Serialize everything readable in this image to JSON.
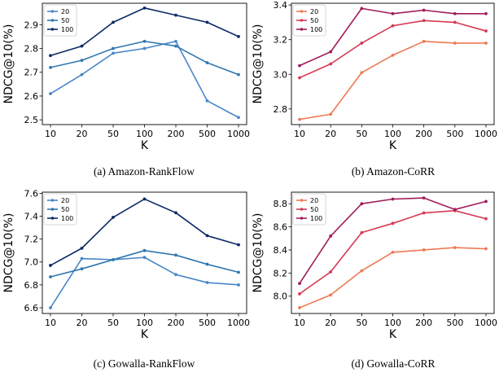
{
  "chart_data": [
    {
      "type": "line",
      "caption": "(a)  Amazon-RankFlow",
      "xlabel": "K",
      "ylabel": "NDCG@10(%)",
      "categories": [
        "10",
        "20",
        "50",
        "100",
        "200",
        "500",
        "1000"
      ],
      "ylim": [
        2.48,
        2.99
      ],
      "yticks": [
        "2.5",
        "2.6",
        "2.7",
        "2.8",
        "2.9"
      ],
      "legend_position": "top-left",
      "series": [
        {
          "name": "20",
          "color": "#4a86c8",
          "values": [
            2.61,
            2.69,
            2.78,
            2.8,
            2.83,
            2.58,
            2.51
          ]
        },
        {
          "name": "50",
          "color": "#2f77b0",
          "values": [
            2.72,
            2.75,
            2.8,
            2.83,
            2.81,
            2.74,
            2.69
          ]
        },
        {
          "name": "100",
          "color": "#0c2a66",
          "values": [
            2.77,
            2.81,
            2.91,
            2.97,
            2.94,
            2.91,
            2.85
          ]
        }
      ]
    },
    {
      "type": "line",
      "caption": "(b)  Amazon-CoRR",
      "xlabel": "K",
      "ylabel": "NDCG@10(%)",
      "categories": [
        "10",
        "20",
        "50",
        "100",
        "200",
        "500",
        "1000"
      ],
      "ylim": [
        2.71,
        3.41
      ],
      "yticks": [
        "2.8",
        "3.0",
        "3.2",
        "3.4"
      ],
      "legend_position": "top-left",
      "series": [
        {
          "name": "20",
          "color": "#ee7a55",
          "values": [
            2.74,
            2.77,
            3.01,
            3.11,
            3.19,
            3.18,
            3.18
          ]
        },
        {
          "name": "50",
          "color": "#d63a55",
          "values": [
            2.98,
            3.06,
            3.18,
            3.28,
            3.31,
            3.3,
            3.25
          ]
        },
        {
          "name": "100",
          "color": "#a01c5a",
          "values": [
            3.05,
            3.13,
            3.38,
            3.35,
            3.37,
            3.35,
            3.35
          ]
        }
      ]
    },
    {
      "type": "line",
      "caption": "(c)  Gowalla-RankFlow",
      "xlabel": "K",
      "ylabel": "NDCG@10(%)",
      "categories": [
        "10",
        "20",
        "50",
        "100",
        "200",
        "500",
        "1000"
      ],
      "ylim": [
        6.55,
        7.61
      ],
      "yticks": [
        "6.6",
        "6.8",
        "7.0",
        "7.2",
        "7.4",
        "7.6"
      ],
      "legend_position": "top-left",
      "series": [
        {
          "name": "20",
          "color": "#4a86c8",
          "values": [
            6.6,
            7.03,
            7.02,
            7.04,
            6.89,
            6.82,
            6.8
          ]
        },
        {
          "name": "50",
          "color": "#2f77b0",
          "values": [
            6.87,
            6.94,
            7.02,
            7.1,
            7.06,
            6.98,
            6.91
          ]
        },
        {
          "name": "100",
          "color": "#0c2a66",
          "values": [
            6.97,
            7.12,
            7.39,
            7.55,
            7.43,
            7.23,
            7.15
          ]
        }
      ]
    },
    {
      "type": "line",
      "caption": "(d)  Gowalla-CoRR",
      "xlabel": "K",
      "ylabel": "NDCG@10(%)",
      "categories": [
        "10",
        "20",
        "50",
        "100",
        "200",
        "500",
        "1000"
      ],
      "ylim": [
        7.85,
        8.9
      ],
      "yticks": [
        "8.0",
        "8.2",
        "8.4",
        "8.6",
        "8.8"
      ],
      "legend_position": "top-left",
      "series": [
        {
          "name": "20",
          "color": "#ee7a55",
          "values": [
            7.9,
            8.01,
            8.22,
            8.38,
            8.4,
            8.42,
            8.41
          ]
        },
        {
          "name": "50",
          "color": "#d63a55",
          "values": [
            8.02,
            8.21,
            8.55,
            8.63,
            8.72,
            8.74,
            8.67
          ]
        },
        {
          "name": "100",
          "color": "#a01c5a",
          "values": [
            8.11,
            8.52,
            8.8,
            8.84,
            8.85,
            8.75,
            8.82
          ]
        }
      ]
    }
  ]
}
